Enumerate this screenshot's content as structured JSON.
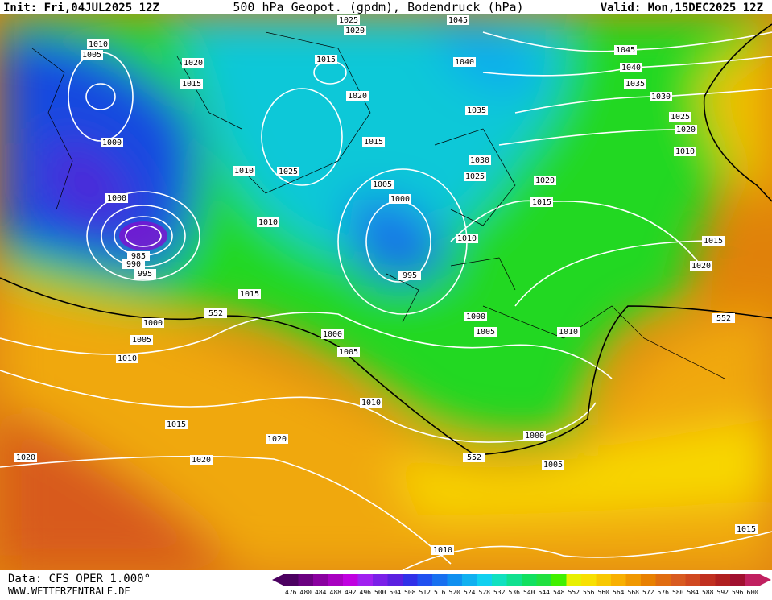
{
  "header": {
    "init": "Init: Fri,04JUL2025 12Z",
    "title": "500 hPa Geopot. (gpdm), Bodendruck (hPa)",
    "valid": "Valid: Mon,15DEC2025 12Z"
  },
  "footer": {
    "source": "Data: CFS OPER 1.000°",
    "website": "WWW.WETTERZENTRALE.DE"
  },
  "isobar_labels": [
    "1025",
    "1020",
    "1045",
    "1010",
    "1005",
    "1020",
    "1015",
    "1040",
    "1045",
    "1040",
    "1015",
    "1035",
    "1020",
    "1030",
    "1035",
    "1025",
    "1020",
    "1000",
    "1015",
    "1010",
    "1030",
    "1010",
    "1025",
    "1025",
    "1020",
    "1005",
    "1000",
    "1000",
    "1015",
    "1010",
    "1010",
    "1015",
    "985",
    "990",
    "1020",
    "995",
    "995",
    "1015",
    "552",
    "1000",
    "552",
    "1000",
    "1010",
    "1005",
    "1000",
    "1005",
    "1005",
    "1010",
    "1010",
    "1015",
    "1000",
    "1020",
    "1020",
    "1020",
    "552",
    "1005",
    "1015",
    "1010"
  ],
  "colorbar": {
    "labels": [
      476,
      480,
      484,
      488,
      492,
      496,
      500,
      504,
      508,
      512,
      516,
      520,
      524,
      528,
      532,
      536,
      540,
      544,
      548,
      552,
      556,
      560,
      564,
      568,
      572,
      576,
      580,
      584,
      588,
      592,
      596,
      600
    ],
    "colors": [
      "#4b0060",
      "#6a0080",
      "#8a00a0",
      "#a800c0",
      "#c000e0",
      "#a020f0",
      "#7a20e8",
      "#5a20e0",
      "#3030e8",
      "#2050f0",
      "#1870f0",
      "#1090f0",
      "#10b0f0",
      "#10d0f0",
      "#10e0c0",
      "#10e090",
      "#10e060",
      "#20e040",
      "#40f000",
      "#e8f000",
      "#f8e000",
      "#f8c800",
      "#f8b000",
      "#f09800",
      "#e88000",
      "#e06c10",
      "#d85a20",
      "#d04820",
      "#c03020",
      "#b02020",
      "#a01030",
      "#c02060"
    ]
  }
}
